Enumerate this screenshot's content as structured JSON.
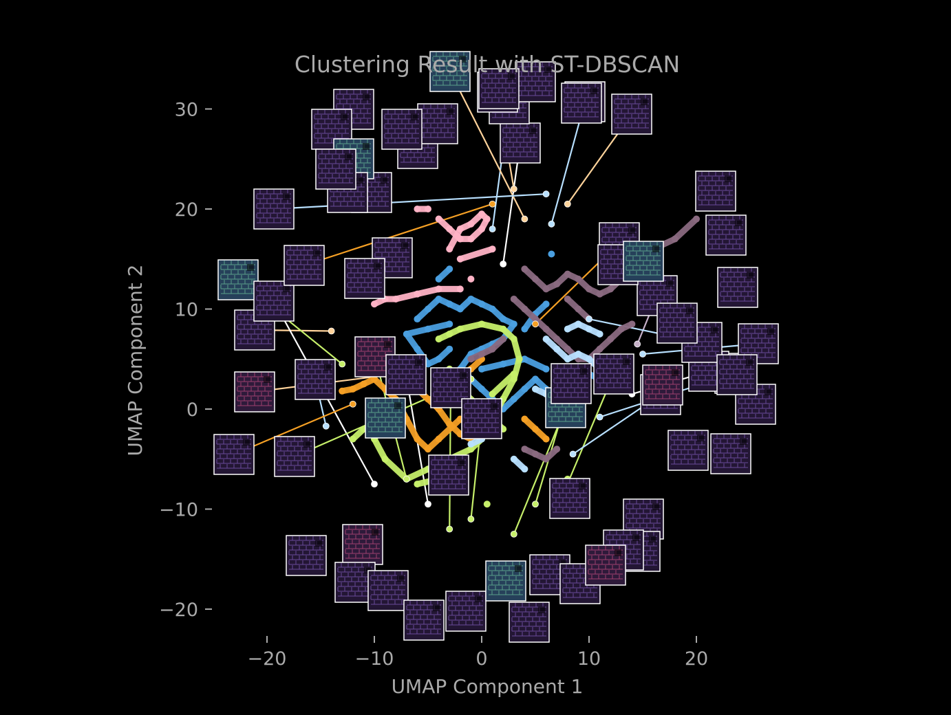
{
  "chart_data": {
    "type": "scatter",
    "title": "Clustering Result with ST-DBSCAN",
    "xlabel": "UMAP Component 1",
    "ylabel": "UMAP Component 2",
    "xlim": [
      -25,
      28
    ],
    "ylim": [
      -23,
      33
    ],
    "xticks": [
      -20,
      -10,
      0,
      10,
      20
    ],
    "yticks": [
      -20,
      -10,
      0,
      10,
      20,
      30
    ],
    "xtick_labels": [
      "−20",
      "−10",
      "0",
      "10",
      "20"
    ],
    "ytick_labels": [
      "−20",
      "−10",
      "0",
      "10",
      "20",
      "30"
    ],
    "grid": false,
    "legend": "none",
    "background": "#000000",
    "text_color": "#aaaaaa",
    "series": [
      {
        "color": "#4a9fe0",
        "points": [
          [
            -6,
            9
          ],
          [
            -5,
            10
          ],
          [
            -4,
            11
          ],
          [
            -3,
            10.5
          ],
          [
            -2,
            10
          ],
          [
            -1,
            11
          ],
          [
            0,
            10.5
          ],
          [
            1,
            10
          ],
          [
            2,
            9
          ],
          [
            3,
            8.5
          ],
          [
            2,
            7
          ],
          [
            1,
            6.5
          ],
          [
            0,
            6
          ],
          [
            -1,
            5.5
          ],
          [
            -2,
            4
          ],
          [
            -1,
            3
          ],
          [
            0,
            2
          ],
          [
            1,
            1
          ],
          [
            2,
            0
          ],
          [
            3,
            1
          ],
          [
            4,
            2
          ],
          [
            5,
            3
          ],
          [
            6,
            2
          ],
          [
            7,
            1
          ],
          [
            8,
            2
          ],
          [
            9,
            3
          ],
          [
            10,
            3.5
          ],
          [
            11,
            3
          ],
          [
            6,
            10.5
          ],
          [
            5,
            9.5
          ],
          [
            4,
            8
          ],
          [
            -3,
            6
          ],
          [
            -4,
            5
          ],
          [
            -5,
            4.5
          ],
          [
            -6,
            6
          ],
          [
            -7,
            7.5
          ],
          [
            -5,
            8
          ],
          [
            -3,
            8.5
          ],
          [
            0,
            4
          ],
          [
            2,
            4.5
          ],
          [
            4,
            5
          ],
          [
            6,
            4
          ],
          [
            -4,
            13
          ],
          [
            -3,
            14
          ],
          [
            6.5,
            15.5
          ]
        ]
      },
      {
        "color": "#f5a025",
        "points": [
          [
            -10,
            5.5
          ],
          [
            -9,
            5
          ],
          [
            -8,
            4
          ],
          [
            -7,
            3
          ],
          [
            -6,
            2
          ],
          [
            -5,
            1
          ],
          [
            -4,
            0
          ],
          [
            -3,
            -1.5
          ],
          [
            -2,
            -2.5
          ],
          [
            -1,
            -3
          ],
          [
            0,
            -2
          ],
          [
            -2,
            -1
          ],
          [
            -4,
            -3
          ],
          [
            -5,
            -4
          ],
          [
            -6,
            -3
          ],
          [
            -7,
            -1
          ],
          [
            -8,
            1
          ],
          [
            -9,
            2
          ],
          [
            -10,
            3
          ],
          [
            -11,
            2.5
          ],
          [
            -12,
            2
          ],
          [
            -13,
            1.8
          ],
          [
            -3,
            3
          ],
          [
            -1,
            4
          ],
          [
            0,
            5
          ],
          [
            4,
            -1
          ],
          [
            5,
            -2
          ],
          [
            6,
            -3
          ],
          [
            -4,
            2
          ],
          [
            -2,
            2.5
          ],
          [
            -7,
            4.5
          ],
          [
            -9,
            3.5
          ]
        ]
      },
      {
        "color": "#c6ef6a",
        "points": [
          [
            -4,
            7
          ],
          [
            -3,
            7.5
          ],
          [
            -2,
            8
          ],
          [
            0,
            8.5
          ],
          [
            2,
            8
          ],
          [
            3,
            7
          ],
          [
            3.5,
            5
          ],
          [
            3,
            3
          ],
          [
            2,
            1
          ],
          [
            1,
            -1
          ],
          [
            0,
            -3
          ],
          [
            -1,
            -4
          ],
          [
            -3,
            -5
          ],
          [
            -5,
            -6
          ],
          [
            -7,
            -7
          ],
          [
            -9,
            -5
          ],
          [
            -10,
            -3
          ],
          [
            -9,
            -1
          ],
          [
            -3,
            4
          ],
          [
            -2,
            2
          ],
          [
            0,
            0
          ],
          [
            2,
            -2
          ],
          [
            3,
            3.5
          ],
          [
            1,
            1.5
          ],
          [
            -11,
            -2
          ],
          [
            -12,
            -3
          ],
          [
            -4,
            -7
          ],
          [
            -6,
            -7.5
          ],
          [
            0.5,
            -9.5
          ],
          [
            8,
            -7
          ]
        ]
      },
      {
        "color": "#ffb3c6",
        "points": [
          [
            -4,
            19
          ],
          [
            -3,
            18
          ],
          [
            -2,
            17
          ],
          [
            -1,
            17
          ],
          [
            0,
            18
          ],
          [
            0.5,
            19
          ],
          [
            0,
            19.5
          ],
          [
            -1,
            18.5
          ],
          [
            -2,
            18
          ],
          [
            -3,
            16
          ],
          [
            -5,
            20
          ],
          [
            -6,
            20
          ],
          [
            -2,
            12
          ],
          [
            -4,
            12
          ],
          [
            -6,
            11.5
          ],
          [
            -8,
            11
          ],
          [
            -9,
            11
          ],
          [
            -10,
            10.5
          ],
          [
            -1,
            13
          ],
          [
            1,
            16
          ],
          [
            -2,
            15
          ]
        ]
      },
      {
        "color": "#8a6a80",
        "points": [
          [
            4,
            14
          ],
          [
            5,
            13
          ],
          [
            6,
            12
          ],
          [
            7,
            12.5
          ],
          [
            8,
            13.5
          ],
          [
            9,
            13
          ],
          [
            10,
            12
          ],
          [
            11,
            11.5
          ],
          [
            12,
            12
          ],
          [
            13,
            13
          ],
          [
            14,
            14
          ],
          [
            15,
            15
          ],
          [
            16,
            16
          ],
          [
            18,
            17
          ],
          [
            20,
            19
          ],
          [
            3,
            11
          ],
          [
            4,
            10
          ],
          [
            5,
            9
          ],
          [
            6,
            8
          ],
          [
            7,
            7
          ],
          [
            8,
            6
          ],
          [
            9,
            5
          ],
          [
            10,
            5
          ],
          [
            11,
            6
          ],
          [
            12,
            7
          ],
          [
            13,
            8
          ],
          [
            14,
            8.5
          ],
          [
            2,
            7
          ],
          [
            1,
            6
          ],
          [
            0,
            5.5
          ],
          [
            -1,
            5
          ],
          [
            4,
            -4
          ],
          [
            5,
            -4.5
          ],
          [
            6,
            -5
          ],
          [
            7,
            -4
          ],
          [
            10,
            9
          ],
          [
            9,
            10
          ],
          [
            8,
            11
          ]
        ]
      },
      {
        "color": "#b8e0ff",
        "points": [
          [
            6,
            7
          ],
          [
            7,
            6
          ],
          [
            8,
            5
          ],
          [
            9,
            5.5
          ],
          [
            10,
            5
          ],
          [
            11,
            4
          ],
          [
            8,
            8
          ],
          [
            9,
            8.5
          ],
          [
            10,
            8
          ],
          [
            11,
            7.5
          ],
          [
            5,
            2
          ],
          [
            6,
            1.5
          ],
          [
            7,
            1
          ],
          [
            8,
            2
          ],
          [
            9,
            2.5
          ],
          [
            -1,
            -2
          ],
          [
            0,
            -1
          ],
          [
            1,
            0
          ],
          [
            0,
            -3
          ],
          [
            -1,
            -3.5
          ],
          [
            3,
            -5
          ],
          [
            4,
            -6
          ]
        ]
      }
    ],
    "label_points": [
      {
        "x": -14,
        "y": 7.8,
        "color": "#ffd39b"
      },
      {
        "x": -13,
        "y": 4.5,
        "color": "#c6ef6a"
      },
      {
        "x": -14.5,
        "y": -1.7,
        "color": "#b8e0ff"
      },
      {
        "x": -10,
        "y": -7.5,
        "color": "#ffffff"
      },
      {
        "x": -7,
        "y": -7,
        "color": "#c6ef6a"
      },
      {
        "x": -5,
        "y": -9.5,
        "color": "#ffffff"
      },
      {
        "x": -3,
        "y": -12,
        "color": "#c6ef6a"
      },
      {
        "x": -1,
        "y": -11,
        "color": "#c6ef6a"
      },
      {
        "x": 3,
        "y": -12.5,
        "color": "#c6ef6a"
      },
      {
        "x": 5,
        "y": -9.5,
        "color": "#c6ef6a"
      },
      {
        "x": 7,
        "y": -10,
        "color": "#c6ef6a"
      },
      {
        "x": 8.5,
        "y": -4.5,
        "color": "#b8e0ff"
      },
      {
        "x": 11,
        "y": -0.8,
        "color": "#b8e0ff"
      },
      {
        "x": 14,
        "y": 1.5,
        "color": "#ffffff"
      },
      {
        "x": 15,
        "y": 5.5,
        "color": "#b8e0ff"
      },
      {
        "x": 14.5,
        "y": 6.5,
        "color": "#c6b0c8"
      },
      {
        "x": 10,
        "y": 9,
        "color": "#b8e0ff"
      },
      {
        "x": 5,
        "y": 8.5,
        "color": "#f5a025"
      },
      {
        "x": 2,
        "y": 14.5,
        "color": "#ffffff"
      },
      {
        "x": 1,
        "y": 18,
        "color": "#b8e0ff"
      },
      {
        "x": 6.5,
        "y": 18.5,
        "color": "#b8e0ff"
      },
      {
        "x": 8,
        "y": 20.5,
        "color": "#ffd39b"
      },
      {
        "x": 4,
        "y": 19,
        "color": "#ffd39b"
      },
      {
        "x": 3,
        "y": 22,
        "color": "#ffd39b"
      },
      {
        "x": 6,
        "y": 21.5,
        "color": "#b8e0ff"
      },
      {
        "x": 1,
        "y": 20.5,
        "color": "#f5a025"
      },
      {
        "x": -8,
        "y": 3.5,
        "color": "#ffd39b"
      },
      {
        "x": -12,
        "y": 0.5,
        "color": "#f5a025"
      },
      {
        "x": -1,
        "y": 3,
        "color": "#c6ef6a"
      }
    ],
    "thumbnail_color_schemes": [
      "purple",
      "teal",
      "pink"
    ]
  }
}
